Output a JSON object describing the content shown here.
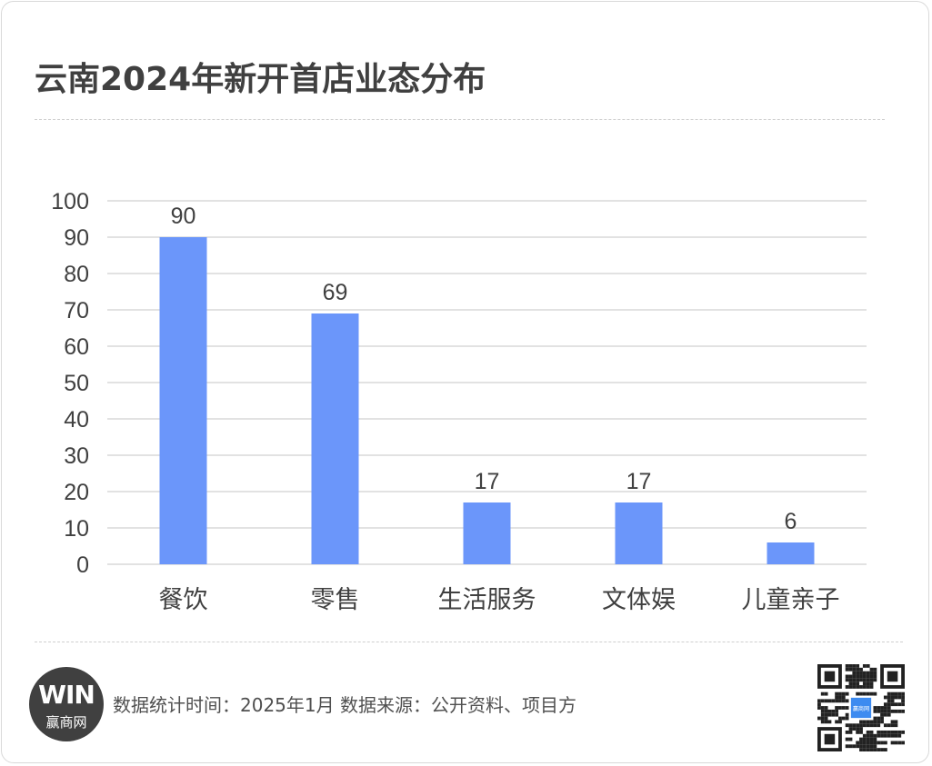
{
  "title": "云南2024年新开首店业态分布",
  "footer": {
    "logo_mark": "WIN",
    "logo_text": "赢商网",
    "source": "数据统计时间：2025年1月 数据来源：公开资料、项目方",
    "qr_center_text": "赢商网"
  },
  "colors": {
    "bar": "#6b96fa",
    "grid": "#d9d9d9",
    "text": "#404040"
  },
  "chart_data": {
    "type": "bar",
    "categories": [
      "餐饮",
      "零售",
      "生活服务",
      "文体娱",
      "儿童亲子"
    ],
    "values": [
      90,
      69,
      17,
      17,
      6
    ],
    "data_labels": [
      "90",
      "69",
      "17",
      "17",
      "6"
    ],
    "yticks": [
      "0",
      "10",
      "20",
      "30",
      "40",
      "50",
      "60",
      "70",
      "80",
      "90",
      "100"
    ],
    "ylim": [
      0,
      100
    ],
    "grid": true,
    "legend": "none"
  }
}
